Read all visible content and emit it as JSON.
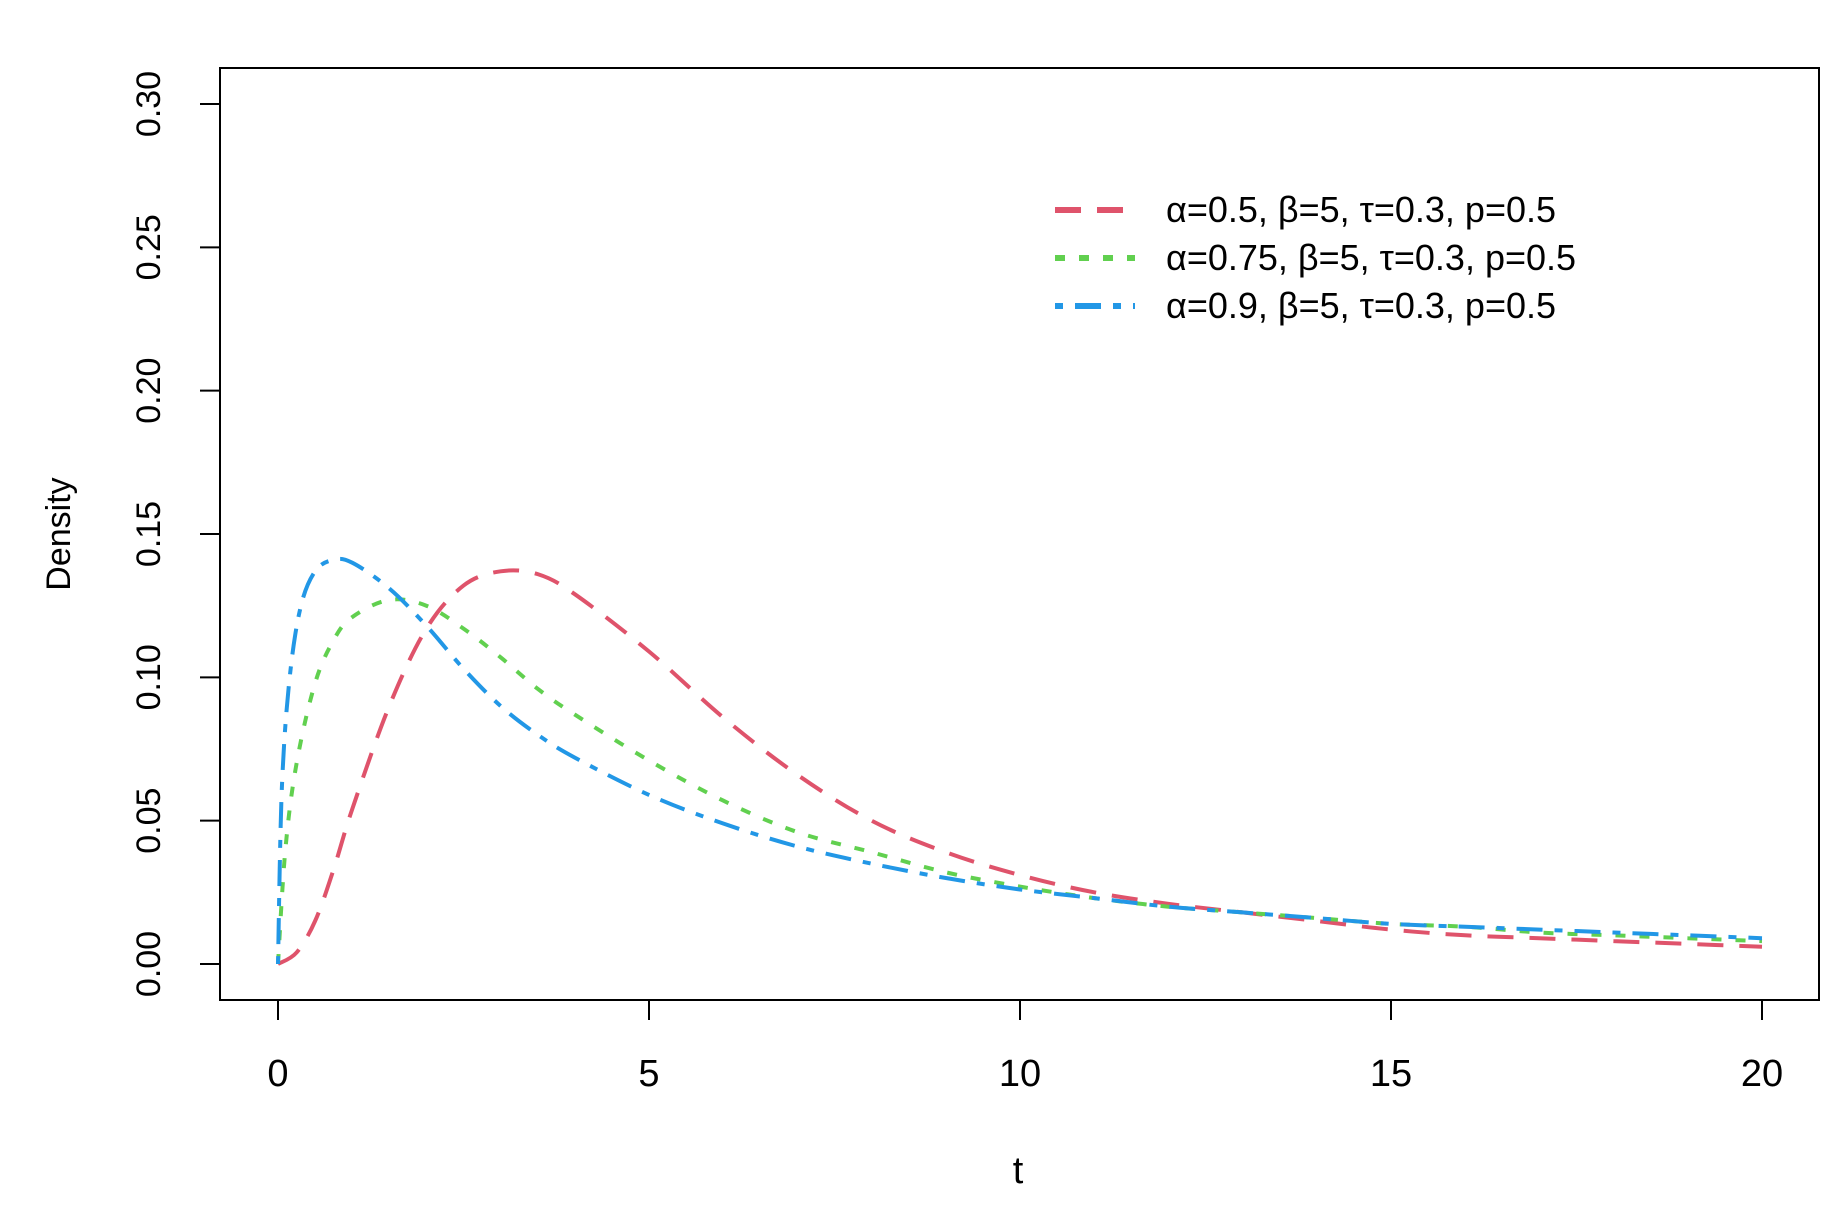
{
  "chart_data": {
    "type": "line",
    "xlabel": "t",
    "ylabel": "Density",
    "xlim": [
      0,
      20
    ],
    "ylim": [
      0,
      0.3
    ],
    "x_ticks": [
      "0",
      "5",
      "10",
      "15",
      "20"
    ],
    "y_ticks": [
      "0.00",
      "0.05",
      "0.10",
      "0.15",
      "0.20",
      "0.25",
      "0.30"
    ],
    "grid": false,
    "legend_position": "top-right",
    "series": [
      {
        "name": "α=0.5, β=5, τ=0.3, p=0.5",
        "color": "#df536b",
        "dash": "dashed",
        "x": [
          0,
          0.25,
          0.5,
          0.75,
          1,
          1.5,
          2,
          2.5,
          3,
          3.5,
          4,
          5,
          6,
          7,
          8,
          9,
          10,
          11,
          12,
          13,
          14,
          15,
          16,
          17,
          18,
          19,
          20
        ],
        "y": [
          0,
          0.004,
          0.015,
          0.033,
          0.054,
          0.09,
          0.117,
          0.132,
          0.137,
          0.136,
          0.129,
          0.109,
          0.086,
          0.066,
          0.05,
          0.039,
          0.031,
          0.025,
          0.021,
          0.018,
          0.015,
          0.012,
          0.01,
          0.009,
          0.008,
          0.007,
          0.006
        ]
      },
      {
        "name": "α=0.75, β=5, τ=0.3, p=0.5",
        "color": "#61d04f",
        "dash": "dotted",
        "x": [
          0,
          0.1,
          0.25,
          0.5,
          0.75,
          1,
          1.5,
          2,
          2.5,
          3,
          3.5,
          4,
          5,
          6,
          7,
          8,
          9,
          10,
          11,
          12,
          13,
          14,
          15,
          16,
          17,
          18,
          19,
          20
        ],
        "y": [
          0,
          0.04,
          0.07,
          0.098,
          0.113,
          0.121,
          0.127,
          0.125,
          0.117,
          0.107,
          0.096,
          0.087,
          0.071,
          0.057,
          0.046,
          0.039,
          0.032,
          0.027,
          0.023,
          0.02,
          0.018,
          0.016,
          0.014,
          0.013,
          0.011,
          0.01,
          0.009,
          0.008
        ]
      },
      {
        "name": "α=0.9, β=5, τ=0.3, p=0.5",
        "color": "#2297e6",
        "dash": "dotdash",
        "x": [
          0,
          0.05,
          0.15,
          0.3,
          0.5,
          0.75,
          1,
          1.5,
          2,
          2.5,
          3,
          3.5,
          4,
          5,
          6,
          7,
          8,
          9,
          10,
          11,
          12,
          13,
          14,
          15,
          16,
          17,
          18,
          19,
          20
        ],
        "y": [
          0,
          0.06,
          0.098,
          0.124,
          0.137,
          0.141,
          0.14,
          0.131,
          0.118,
          0.103,
          0.09,
          0.08,
          0.072,
          0.059,
          0.049,
          0.041,
          0.035,
          0.03,
          0.026,
          0.023,
          0.02,
          0.018,
          0.016,
          0.014,
          0.013,
          0.012,
          0.011,
          0.01,
          0.009
        ]
      }
    ]
  }
}
